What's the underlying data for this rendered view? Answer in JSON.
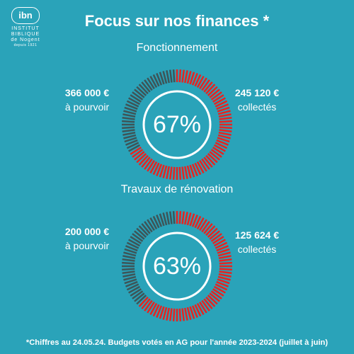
{
  "logo": {
    "mark": "ibn",
    "line1": "INSTITUT",
    "line2": "BIBLIQUE",
    "line3": "de Nogent",
    "line4": "depuis 1921"
  },
  "title": "Focus sur nos finances *",
  "colors": {
    "background": "#2aa3b9",
    "collected": "#e52421",
    "remaining": "#3d5558"
  },
  "sections": [
    {
      "title": "Fonctionnement",
      "remaining_amount": "366 000 €",
      "remaining_label": "à pourvoir",
      "collected_amount": "245 120 €",
      "collected_label": "collectés",
      "percent_label": "67%",
      "percent": 67
    },
    {
      "title": "Travaux de rénovation",
      "remaining_amount": "200 000 €",
      "remaining_label": "à pourvoir",
      "collected_amount": "125 624 €",
      "collected_label": "collectés",
      "percent_label": "63%",
      "percent": 63
    }
  ],
  "footnote": "*Chiffres au 24.05.24. Budgets votés en AG pour l'année 2023-2024 (juillet à juin)"
}
